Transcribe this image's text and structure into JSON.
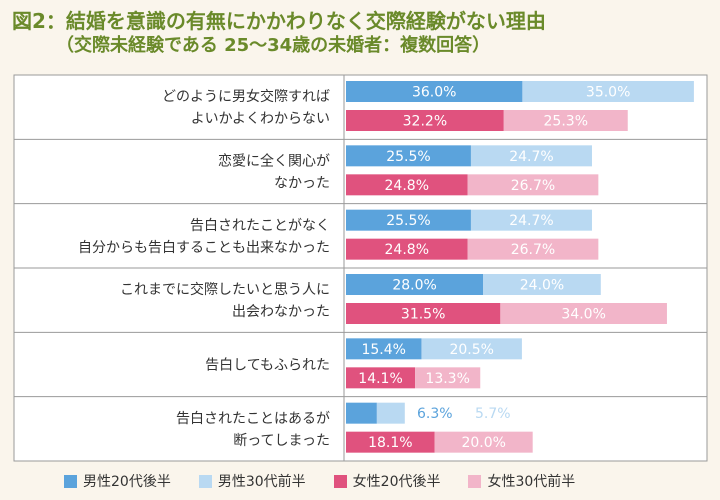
{
  "title": "図2：結婚を意識の有無にかかわりなく交際経験がない理由",
  "subtitle": "（交際未経験である 25〜34歳の未婚者：複数回答）",
  "colors": {
    "male20": "#5ba3dc",
    "male30": "#b9d9f2",
    "female20": "#e0527e",
    "female30": "#f2b5c9",
    "title": "#6a8a2a",
    "border": "#9a9a9a",
    "background": "#faf5ec"
  },
  "chart_data": {
    "type": "bar",
    "orientation": "horizontal",
    "stacked_pairs": true,
    "value_suffix": "%",
    "legend_position": "bottom",
    "categories": [
      [
        "どのように男女交際すれば",
        "よいかよくわからない"
      ],
      [
        "恋愛に全く関心が",
        "なかった"
      ],
      [
        "告白されたことがなく",
        "自分からも告白することも出来なかった"
      ],
      [
        "これまでに交際したいと思う人に",
        "出会わなかった"
      ],
      [
        "告白してもふられた"
      ],
      [
        "告白されたことはあるが",
        "断ってしまった"
      ]
    ],
    "series": [
      {
        "name": "男性20代後半",
        "group": "male",
        "values": [
          36.0,
          25.5,
          25.5,
          28.0,
          15.4,
          6.3
        ]
      },
      {
        "name": "男性30代前半",
        "group": "male",
        "values": [
          35.0,
          24.7,
          24.7,
          24.0,
          20.5,
          5.7
        ]
      },
      {
        "name": "女性20代後半",
        "group": "female",
        "values": [
          32.2,
          24.8,
          24.8,
          31.5,
          14.1,
          18.1
        ]
      },
      {
        "name": "女性30代前半",
        "group": "female",
        "values": [
          25.3,
          26.7,
          26.7,
          34.0,
          13.3,
          20.0
        ]
      }
    ]
  }
}
